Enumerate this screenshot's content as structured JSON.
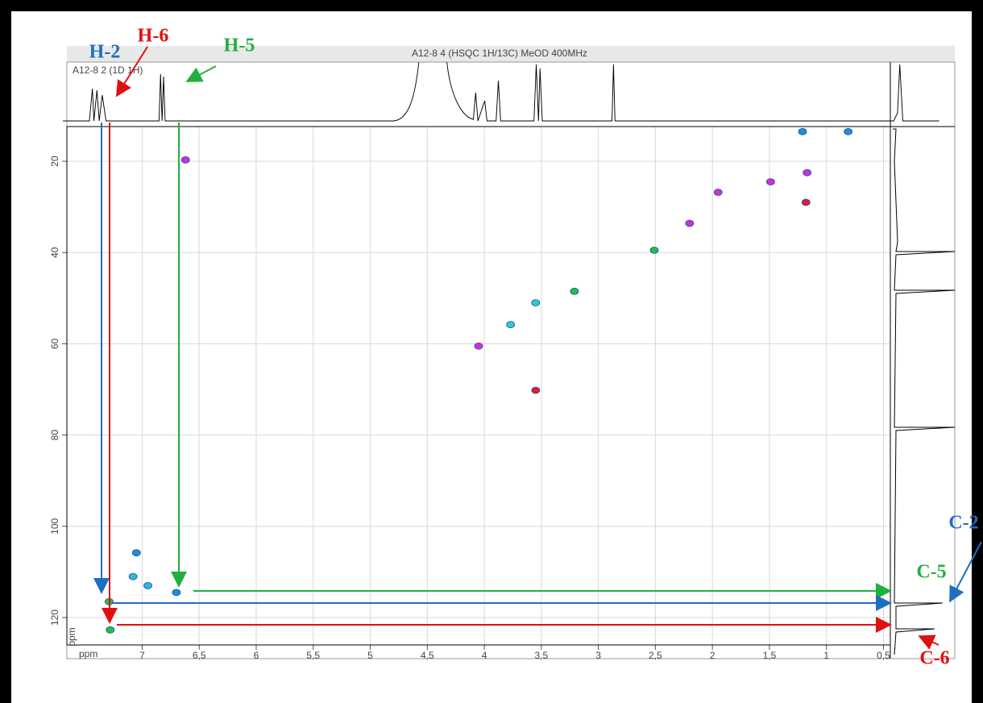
{
  "chart_data": {
    "type": "scatter",
    "title": "A12-8 4 (HSQC 1H/13C) MeOD 400MHz",
    "top_trace_label": "A12-8 2 (1D 1H)",
    "x_label": "ppm",
    "y_label": "ppm",
    "x": [
      7.29,
      7.28,
      6.7,
      7.05,
      7.08,
      6.95,
      3.77,
      3.55,
      3.21,
      2.51,
      1.18,
      0.81,
      1.21,
      1.17,
      1.49,
      2.2,
      1.95,
      4.05,
      3.55,
      6.62
    ],
    "values": [
      116.5,
      122.7,
      114.5,
      105.8,
      111,
      113,
      55.8,
      70.2,
      48.5,
      39.5,
      29,
      13.5,
      13.5,
      22.5,
      24.5,
      33.6,
      26.8,
      60.5,
      51,
      19.7
    ],
    "colors": [
      "#22c040",
      "#22c040",
      "#1f8fd0",
      "#1f8fd0",
      "#30b8d8",
      "#30b8d8",
      "#30c8d0",
      "#e02020",
      "#22c040",
      "#22c040",
      "#e02020",
      "#1f8fd0",
      "#1f8fd0",
      "#d030d0",
      "#d030d0",
      "#d030d0",
      "#d030d0",
      "#d030d0",
      "#30c8d0",
      "#d030d0"
    ],
    "xlim": [
      7.66,
      0.44
    ],
    "ylim": [
      12.4,
      126
    ],
    "xticks": [
      7,
      {
        "value": 6.5,
        "label": "6,5"
      },
      6,
      {
        "value": 5.5,
        "label": "5,5"
      },
      5,
      {
        "value": 4.5,
        "label": "4,5"
      },
      4,
      {
        "value": 3.5,
        "label": "3,5"
      },
      3,
      {
        "value": 2.5,
        "label": "2,5"
      },
      2,
      {
        "value": 1.5,
        "label": "1,5"
      },
      1,
      {
        "value": 0.5,
        "label": "0,5"
      }
    ],
    "yticks": [
      20,
      40,
      60,
      80,
      100,
      120
    ],
    "grid": true,
    "annotations": [
      "H-2",
      "H-6",
      "H-5",
      "C-2",
      "C-5",
      "C-6"
    ]
  }
}
